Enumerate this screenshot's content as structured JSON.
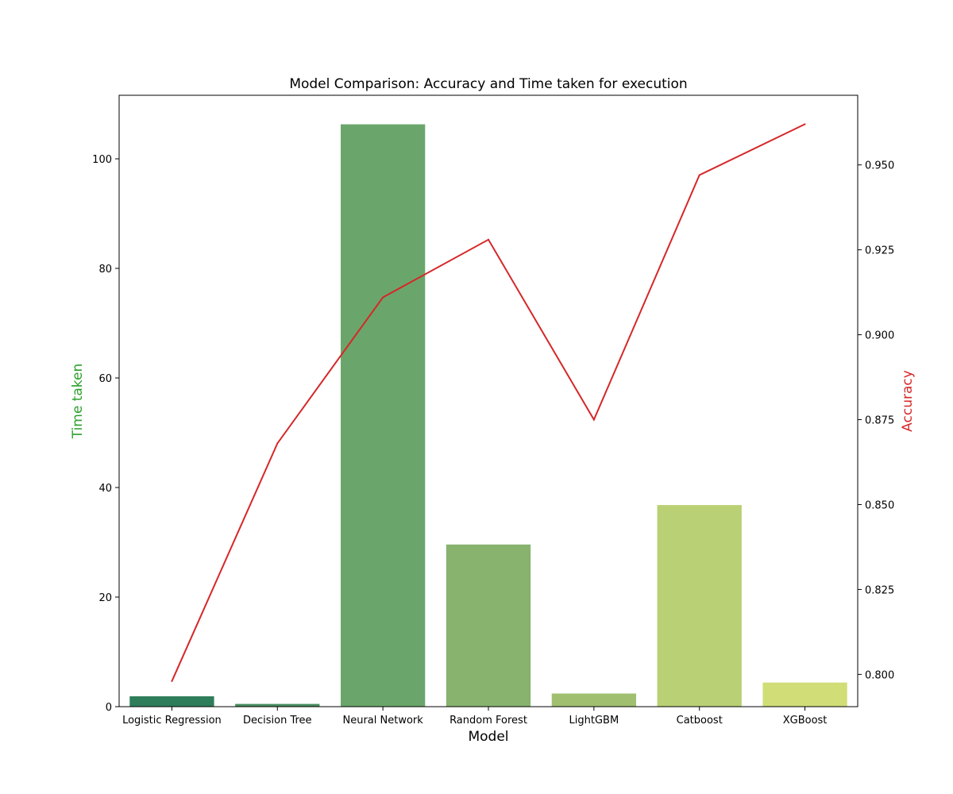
{
  "chart_data": {
    "type": "bar",
    "title": "Model Comparison: Accuracy and Time taken for execution",
    "xlabel": "Model",
    "categories": [
      "Logistic Regression",
      "Decision Tree",
      "Neural Network",
      "Random Forest",
      "LightGBM",
      "Catboost",
      "XGBoost"
    ],
    "series": [
      {
        "name": "Time taken",
        "type": "bar",
        "axis": "left",
        "values": [
          1.9,
          0.5,
          106.3,
          29.6,
          2.4,
          36.8,
          4.4
        ],
        "colors": [
          "#2e7d5b",
          "#4a8d60",
          "#6aa66b",
          "#87b36f",
          "#a0c070",
          "#b9d074",
          "#d1dd76"
        ]
      },
      {
        "name": "Accuracy",
        "type": "line",
        "axis": "right",
        "values": [
          0.798,
          0.868,
          0.911,
          0.928,
          0.875,
          0.947,
          0.962
        ],
        "color": "#d62728"
      }
    ],
    "y_left": {
      "label": "Time taken",
      "label_color": "#2ca02c",
      "lim": [
        0,
        111.6
      ],
      "ticks": [
        0,
        20,
        40,
        60,
        80,
        100
      ]
    },
    "y_right": {
      "label": "Accuracy",
      "label_color": "#d62728",
      "lim": [
        0.7905,
        0.9705
      ],
      "ticks": [
        "0.800",
        "0.825",
        "0.850",
        "0.875",
        "0.900",
        "0.925",
        "0.950"
      ]
    },
    "grid": false,
    "legend": "none"
  }
}
